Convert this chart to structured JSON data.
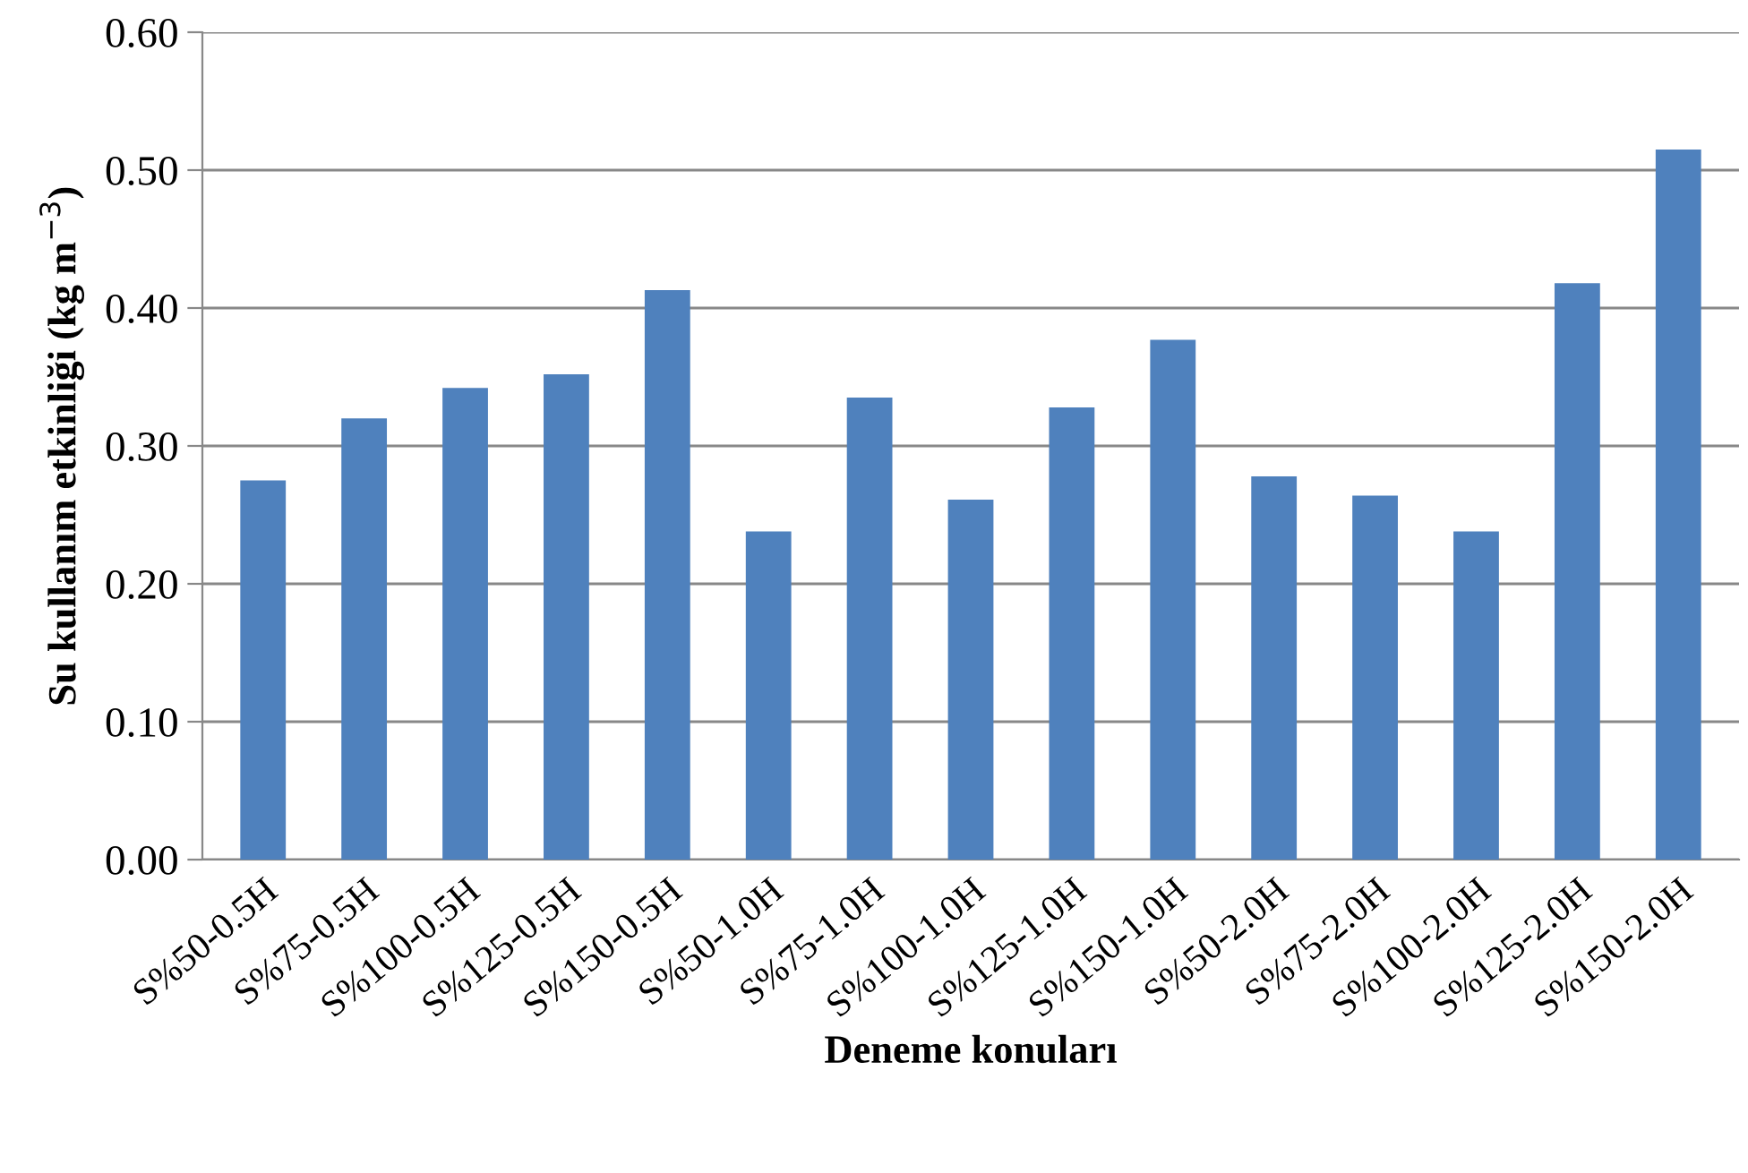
{
  "chart_data": {
    "type": "bar",
    "xlabel": "Deneme konuları",
    "ylabel": "Su kullanım etkinliği (kg m$^{−3}$)",
    "categories": [
      "S%50-0.5H",
      "S%75-0.5H",
      "S%100-0.5H",
      "S%125-0.5H",
      "S%150-0.5H",
      "S%50-1.0H",
      "S%75-1.0H",
      "S%100-1.0H",
      "S%125-1.0H",
      "S%150-1.0H",
      "S%50-2.0H",
      "S%75-2.0H",
      "S%100-2.0H",
      "S%125-2.0H",
      "S%150-2.0H"
    ],
    "values": [
      0.275,
      0.32,
      0.342,
      0.352,
      0.413,
      0.238,
      0.335,
      0.261,
      0.328,
      0.377,
      0.278,
      0.264,
      0.238,
      0.418,
      0.515
    ],
    "color": "#4f81bd",
    "ylim": [
      0,
      0.6
    ],
    "yticks": [
      {
        "value": 0,
        "label": "0.00"
      },
      {
        "value": 0.1,
        "label": "0.10"
      },
      {
        "value": 0.2,
        "label": "0.20"
      },
      {
        "value": 0.3,
        "label": "0.30"
      },
      {
        "value": 0.4,
        "label": "0.40"
      },
      {
        "value": 0.5,
        "label": "0.50"
      },
      {
        "value": 0.6,
        "label": "0.60"
      }
    ],
    "grid": "y"
  }
}
